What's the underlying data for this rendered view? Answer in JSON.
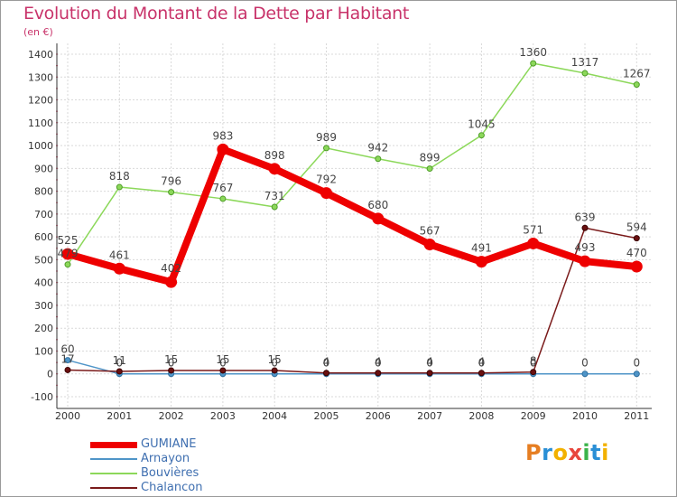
{
  "header": {
    "title": "Evolution du Montant de la Dette par Habitant",
    "subtitle": "(en €)"
  },
  "logo": {
    "text": "Proxiti"
  },
  "chart_data": {
    "type": "line",
    "title": "Evolution du Montant de la Dette par Habitant",
    "subtitle": "(en €)",
    "xlabel": "",
    "ylabel": "",
    "x": [
      "2000",
      "2001",
      "2002",
      "2003",
      "2004",
      "2005",
      "2006",
      "2007",
      "2008",
      "2009",
      "2010",
      "2011"
    ],
    "ylim": [
      -100,
      1400
    ],
    "yticks": [
      -100,
      0,
      100,
      200,
      300,
      400,
      500,
      600,
      700,
      800,
      900,
      1000,
      1100,
      1200,
      1300,
      1400
    ],
    "grid": true,
    "legend_position": "bottom-left",
    "series": [
      {
        "name": "GUMIANE",
        "color": "#ee0000",
        "values": [
          525,
          461,
          402,
          983,
          898,
          792,
          680,
          567,
          491,
          571,
          493,
          470
        ],
        "labels": [
          "525",
          "461",
          "402",
          "983",
          "898",
          "792",
          "680",
          "567",
          "491",
          "571",
          "493",
          "470"
        ]
      },
      {
        "name": "Arnayon",
        "color": "#4f95c8",
        "values": [
          60,
          0,
          0,
          0,
          0,
          0,
          0,
          0,
          0,
          0,
          0,
          0
        ],
        "labels": [
          "60",
          "0",
          "0",
          "0",
          "0",
          "0",
          "0",
          "0",
          "0",
          "0",
          "0",
          "0"
        ]
      },
      {
        "name": "Bouvières",
        "color": "#8cd85a",
        "values": [
          479,
          818,
          796,
          767,
          731,
          989,
          942,
          899,
          1045,
          1360,
          1317,
          1267
        ],
        "labels": [
          "479",
          "818",
          "796",
          "767",
          "731",
          "989",
          "942",
          "899",
          "1045",
          "1360",
          "1317",
          "1267"
        ]
      },
      {
        "name": "Chalancon",
        "color": "#7a1a1a",
        "values": [
          17,
          11,
          15,
          15,
          15,
          4,
          4,
          4,
          4,
          8,
          639,
          594
        ],
        "labels": [
          "17",
          "11",
          "15",
          "15",
          "15",
          "4",
          "4",
          "4",
          "4",
          "8",
          "639",
          "594"
        ]
      }
    ]
  }
}
